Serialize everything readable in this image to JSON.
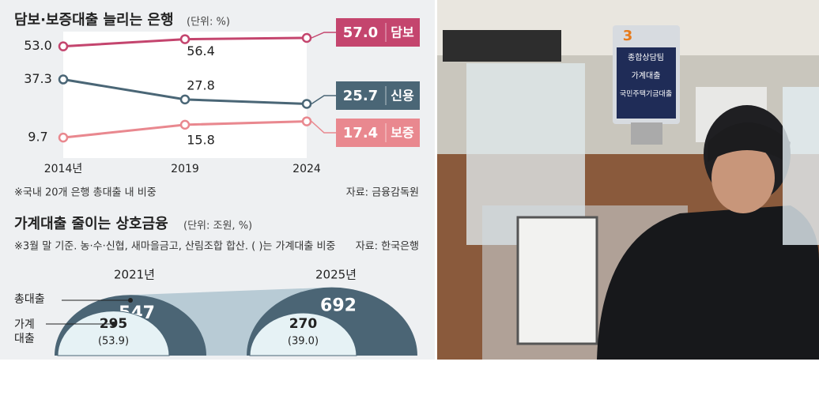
{
  "chart_data": [
    {
      "type": "line",
      "title": "담보·보증대출 늘리는 은행",
      "subtitle": "(단위: %)",
      "categories": [
        "2014년",
        "2019",
        "2024"
      ],
      "series": [
        {
          "name": "담보",
          "color": "#c4456e",
          "values": [
            53.0,
            56.4,
            57.0
          ],
          "value_labels": [
            "53.0",
            "56.4",
            "57.0"
          ]
        },
        {
          "name": "신용",
          "color": "#4a6676",
          "values": [
            37.3,
            27.8,
            25.7
          ],
          "value_labels": [
            "37.3",
            "27.8",
            "25.7"
          ]
        },
        {
          "name": "보증",
          "color": "#e9888f",
          "values": [
            9.7,
            15.8,
            17.4
          ],
          "value_labels": [
            "9.7",
            "15.8",
            "17.4"
          ]
        }
      ],
      "ylim": [
        0,
        60
      ],
      "note": "※국내 20개 은행 총대출 내 비중",
      "source": "자료: 금융감독원"
    },
    {
      "type": "semicircle",
      "title": "가계대출 줄이는 상호금융",
      "subtitle": "(단위: 조원, %)",
      "note": "※3월 말 기준. 농·수·신협, 새마을금고, 산림조합 합산. ( )는 가계대출 비중",
      "source": "자료: 한국은행",
      "categories": [
        "2021년",
        "2025년"
      ],
      "series": [
        {
          "name": "총대출",
          "color": "#4b6575",
          "values": [
            547,
            692
          ]
        },
        {
          "name": "가계\n대출",
          "color": "#e6f2f5",
          "values": [
            295,
            270
          ],
          "shares": [
            53.9,
            39.0
          ],
          "share_labels": [
            "(53.9)",
            "(39.0)"
          ]
        }
      ]
    }
  ],
  "photo": {
    "sign_number": "3",
    "sign_lines": [
      "종합상담팀",
      "가계대출",
      "국민주택기금대출"
    ]
  }
}
